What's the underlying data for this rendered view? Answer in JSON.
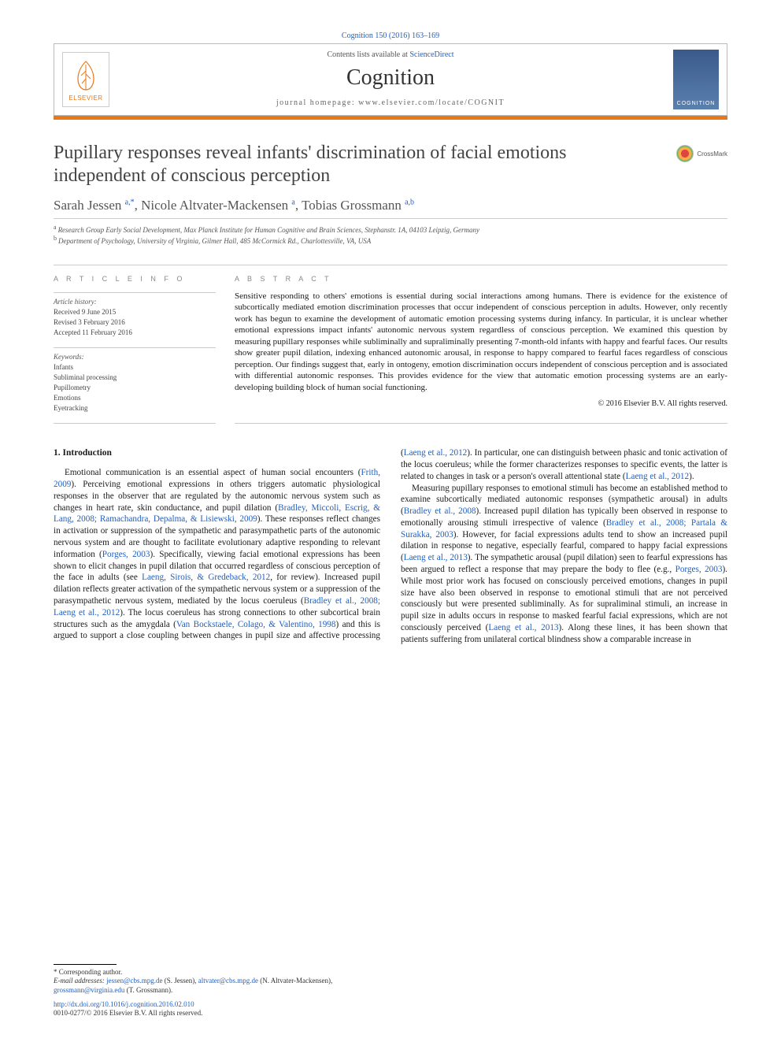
{
  "citation": "Cognition 150 (2016) 163–169",
  "header": {
    "contents_line_prefix": "Contents lists available at ",
    "contents_link": "ScienceDirect",
    "journal": "Cognition",
    "home_label": "journal homepage: ",
    "home_url": "www.elsevier.com/locate/COGNIT",
    "publisher_name": "ELSEVIER",
    "cover_label": "COGNITION"
  },
  "crossmark_label": "CrossMark",
  "title": "Pupillary responses reveal infants' discrimination of facial emotions independent of conscious perception",
  "authors_html": "Sarah Jessen <sup>a,*</sup>, Nicole Altvater-Mackensen <sup>a</sup>, Tobias Grossmann <sup>a,b</sup>",
  "affiliations": [
    {
      "mark": "a",
      "text": "Research Group Early Social Development, Max Planck Institute for Human Cognitive and Brain Sciences, Stephanstr. 1A, 04103 Leipzig, Germany"
    },
    {
      "mark": "b",
      "text": "Department of Psychology, University of Virginia, Gilmer Hall, 485 McCormick Rd., Charlottesville, VA, USA"
    }
  ],
  "info_head": "A R T I C L E   I N F O",
  "abstract_head": "A B S T R A C T",
  "history_head": "Article history:",
  "history": [
    "Received 9 June 2015",
    "Revised 3 February 2016",
    "Accepted 11 February 2016"
  ],
  "keywords_head": "Keywords:",
  "keywords": [
    "Infants",
    "Subliminal processing",
    "Pupillometry",
    "Emotions",
    "Eyetracking"
  ],
  "abstract": "Sensitive responding to others' emotions is essential during social interactions among humans. There is evidence for the existence of subcortically mediated emotion discrimination processes that occur independent of conscious perception in adults. However, only recently work has begun to examine the development of automatic emotion processing systems during infancy. In particular, it is unclear whether emotional expressions impact infants' autonomic nervous system regardless of conscious perception. We examined this question by measuring pupillary responses while subliminally and supraliminally presenting 7-month-old infants with happy and fearful faces. Our results show greater pupil dilation, indexing enhanced autonomic arousal, in response to happy compared to fearful faces regardless of conscious perception. Our findings suggest that, early in ontogeny, emotion discrimination occurs independent of conscious perception and is associated with differential autonomic responses. This provides evidence for the view that automatic emotion processing systems are an early-developing building block of human social functioning.",
  "copyright": "© 2016 Elsevier B.V. All rights reserved.",
  "section1_head": "1. Introduction",
  "para1_pre": "Emotional communication is an essential aspect of human social encounters (",
  "para1_ref1": "Frith, 2009",
  "para1_mid1": "). Perceiving emotional expressions in others triggers automatic physiological responses in the observer that are regulated by the autonomic nervous system such as changes in heart rate, skin conductance, and pupil dilation (",
  "para1_ref2": "Bradley, Miccoli, Escrig, & Lang, 2008; Ramachandra, Depalma, & Lisiewski, 2009",
  "para1_mid2": "). These responses reflect changes in activation or suppression of the sympathetic and parasympathetic parts of the autonomic nervous system and are thought to facilitate evolutionary adaptive responding to relevant information (",
  "para1_ref3": "Porges, 2003",
  "para1_mid3": "). Specifically, viewing facial emotional expressions has been shown to elicit changes in pupil dilation that occurred regardless of conscious perception of the face in adults (see ",
  "para1_ref4": "Laeng, Sirois, & Gredeback, 2012",
  "para1_mid4": ", for review). Increased pupil dilation reflects greater activation of the sympathetic nervous system or a suppression of the parasympathetic nervous system, mediated by the locus coeruleus (",
  "para1_ref5": "Bradley et al., 2008; Laeng et al., 2012",
  "para1_mid5": "). The locus coeruleus has strong connections to other subcortical brain structures such as the amygdala (",
  "para1_ref6": "Van Bockstaele, Colago, & Valentino, 1998",
  "para1_end": ")",
  "col2_pre": "and this is argued to support a close coupling between changes in pupil size and affective processing (",
  "col2_ref1": "Laeng et al., 2012",
  "col2_mid1": "). In particular, one can distinguish between phasic and tonic activation of the locus coeruleus; while the former characterizes responses to specific events, the latter is related to changes in task or a person's overall attentional state (",
  "col2_ref2": "Laeng et al., 2012",
  "col2_mid2": ").",
  "para2_pre": "Measuring pupillary responses to emotional stimuli has become an established method to examine subcortically mediated autonomic responses (sympathetic arousal) in adults (",
  "para2_ref1": "Bradley et al., 2008",
  "para2_mid1": "). Increased pupil dilation has typically been observed in response to emotionally arousing stimuli irrespective of valence (",
  "para2_ref2": "Bradley et al., 2008; Partala & Surakka, 2003",
  "para2_mid2": "). However, for facial expressions adults tend to show an increased pupil dilation in response to negative, especially fearful, compared to happy facial expressions (",
  "para2_ref3": "Laeng et al., 2013",
  "para2_mid3": "). The sympathetic arousal (pupil dilation) seen to fearful expressions has been argued to reflect a response that may prepare the body to flee (e.g., ",
  "para2_ref4": "Porges, 2003",
  "para2_mid4": "). While most prior work has focused on consciously perceived emotions, changes in pupil size have also been observed in response to emotional stimuli that are not perceived consciously but were presented subliminally. As for supraliminal stimuli, an increase in pupil size in adults occurs in response to masked fearful facial expressions, which are not consciously perceived (",
  "para2_ref5": "Laeng et al., 2013",
  "para2_end": "). Along these lines, it has been shown that patients suffering from unilateral cortical blindness show a comparable increase in",
  "footnotes": {
    "corr_mark": "*",
    "corr_text": "Corresponding author.",
    "email_label": "E-mail addresses:",
    "emails": [
      {
        "addr": "jessen@cbs.mpg.de",
        "who": "(S. Jessen)"
      },
      {
        "addr": "altvater@cbs.mpg.de",
        "who": "(N. Altvater-Mackensen)"
      },
      {
        "addr": "grossmann@virginia.edu",
        "who": "(T. Grossmann)"
      }
    ],
    "doi": "http://dx.doi.org/10.1016/j.cognition.2016.02.010",
    "issn_line": "0010-0277/© 2016 Elsevier B.V. All rights reserved."
  },
  "colors": {
    "orange": "#e67817",
    "link": "#2060c0"
  }
}
